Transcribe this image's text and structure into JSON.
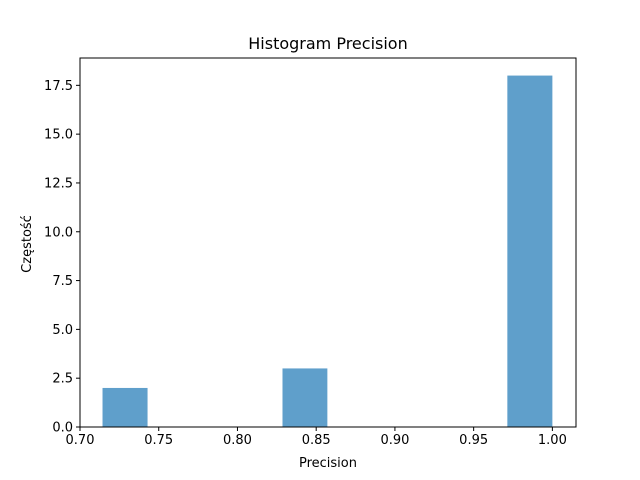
{
  "chart_data": {
    "type": "bar",
    "title": "Histogram Precision",
    "xlabel": "Precision",
    "ylabel": "Częstość",
    "xlim": [
      0.7,
      1.015
    ],
    "ylim": [
      0,
      18.9
    ],
    "grid": false,
    "bar_color": "#5f9fcb",
    "x_ticks": [
      0.7,
      0.75,
      0.8,
      0.85,
      0.9,
      0.95,
      1.0
    ],
    "x_tick_labels": [
      "0.70",
      "0.75",
      "0.80",
      "0.85",
      "0.90",
      "0.95",
      "1.00"
    ],
    "y_ticks": [
      0.0,
      2.5,
      5.0,
      7.5,
      10.0,
      12.5,
      15.0,
      17.5
    ],
    "y_tick_labels": [
      "0.0",
      "2.5",
      "5.0",
      "7.5",
      "10.0",
      "12.5",
      "15.0",
      "17.5"
    ],
    "bins": [
      {
        "start": 0.7143,
        "end": 0.7429,
        "count": 2
      },
      {
        "start": 0.7429,
        "end": 0.7714,
        "count": 0
      },
      {
        "start": 0.7714,
        "end": 0.8,
        "count": 0
      },
      {
        "start": 0.8,
        "end": 0.8286,
        "count": 0
      },
      {
        "start": 0.8286,
        "end": 0.8571,
        "count": 3
      },
      {
        "start": 0.8571,
        "end": 0.8857,
        "count": 0
      },
      {
        "start": 0.8857,
        "end": 0.9143,
        "count": 0
      },
      {
        "start": 0.9143,
        "end": 0.9429,
        "count": 0
      },
      {
        "start": 0.9429,
        "end": 0.9714,
        "count": 0
      },
      {
        "start": 0.9714,
        "end": 1.0,
        "count": 18
      }
    ]
  }
}
